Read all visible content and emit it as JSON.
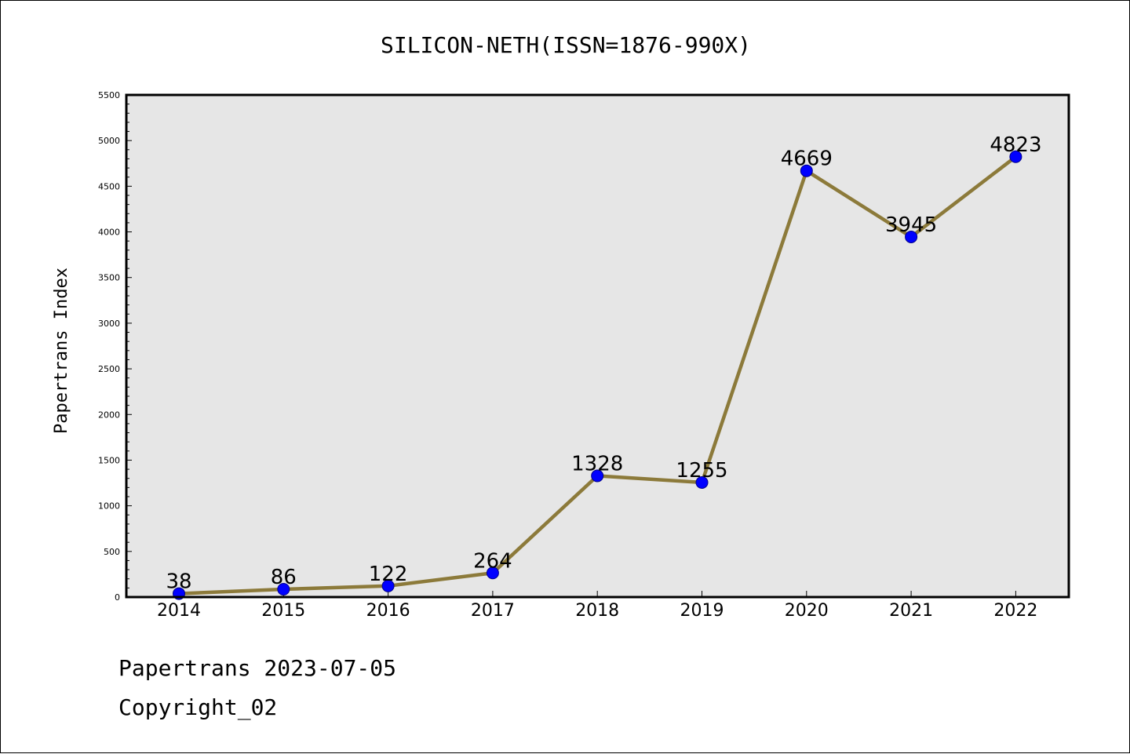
{
  "chart_data": {
    "type": "line",
    "title": "SILICON-NETH(ISSN=1876-990X)",
    "xlabel": "",
    "ylabel": "Papertrans Index",
    "categories": [
      "2014",
      "2015",
      "2016",
      "2017",
      "2018",
      "2019",
      "2020",
      "2021",
      "2022"
    ],
    "series": [
      {
        "values": [
          38,
          86,
          122,
          264,
          1328,
          1255,
          4669,
          3945,
          4823
        ]
      }
    ],
    "data_labels": [
      "38",
      "86",
      "122",
      "264",
      "1328",
      "1255",
      "4669",
      "3945",
      "4823"
    ],
    "ylim": [
      0,
      5500
    ],
    "yticks": [
      "0",
      "500",
      "1000",
      "1500",
      "2000",
      "2500",
      "3000",
      "3500",
      "4000",
      "4500",
      "5000",
      "5500"
    ],
    "grid": false,
    "colors": {
      "plot_background": "#e6e6e6",
      "line": "#8c7a3a",
      "marker": "#0000ff"
    }
  },
  "footer": {
    "line1": "Papertrans 2023-07-05",
    "line2": "Copyright_02"
  }
}
